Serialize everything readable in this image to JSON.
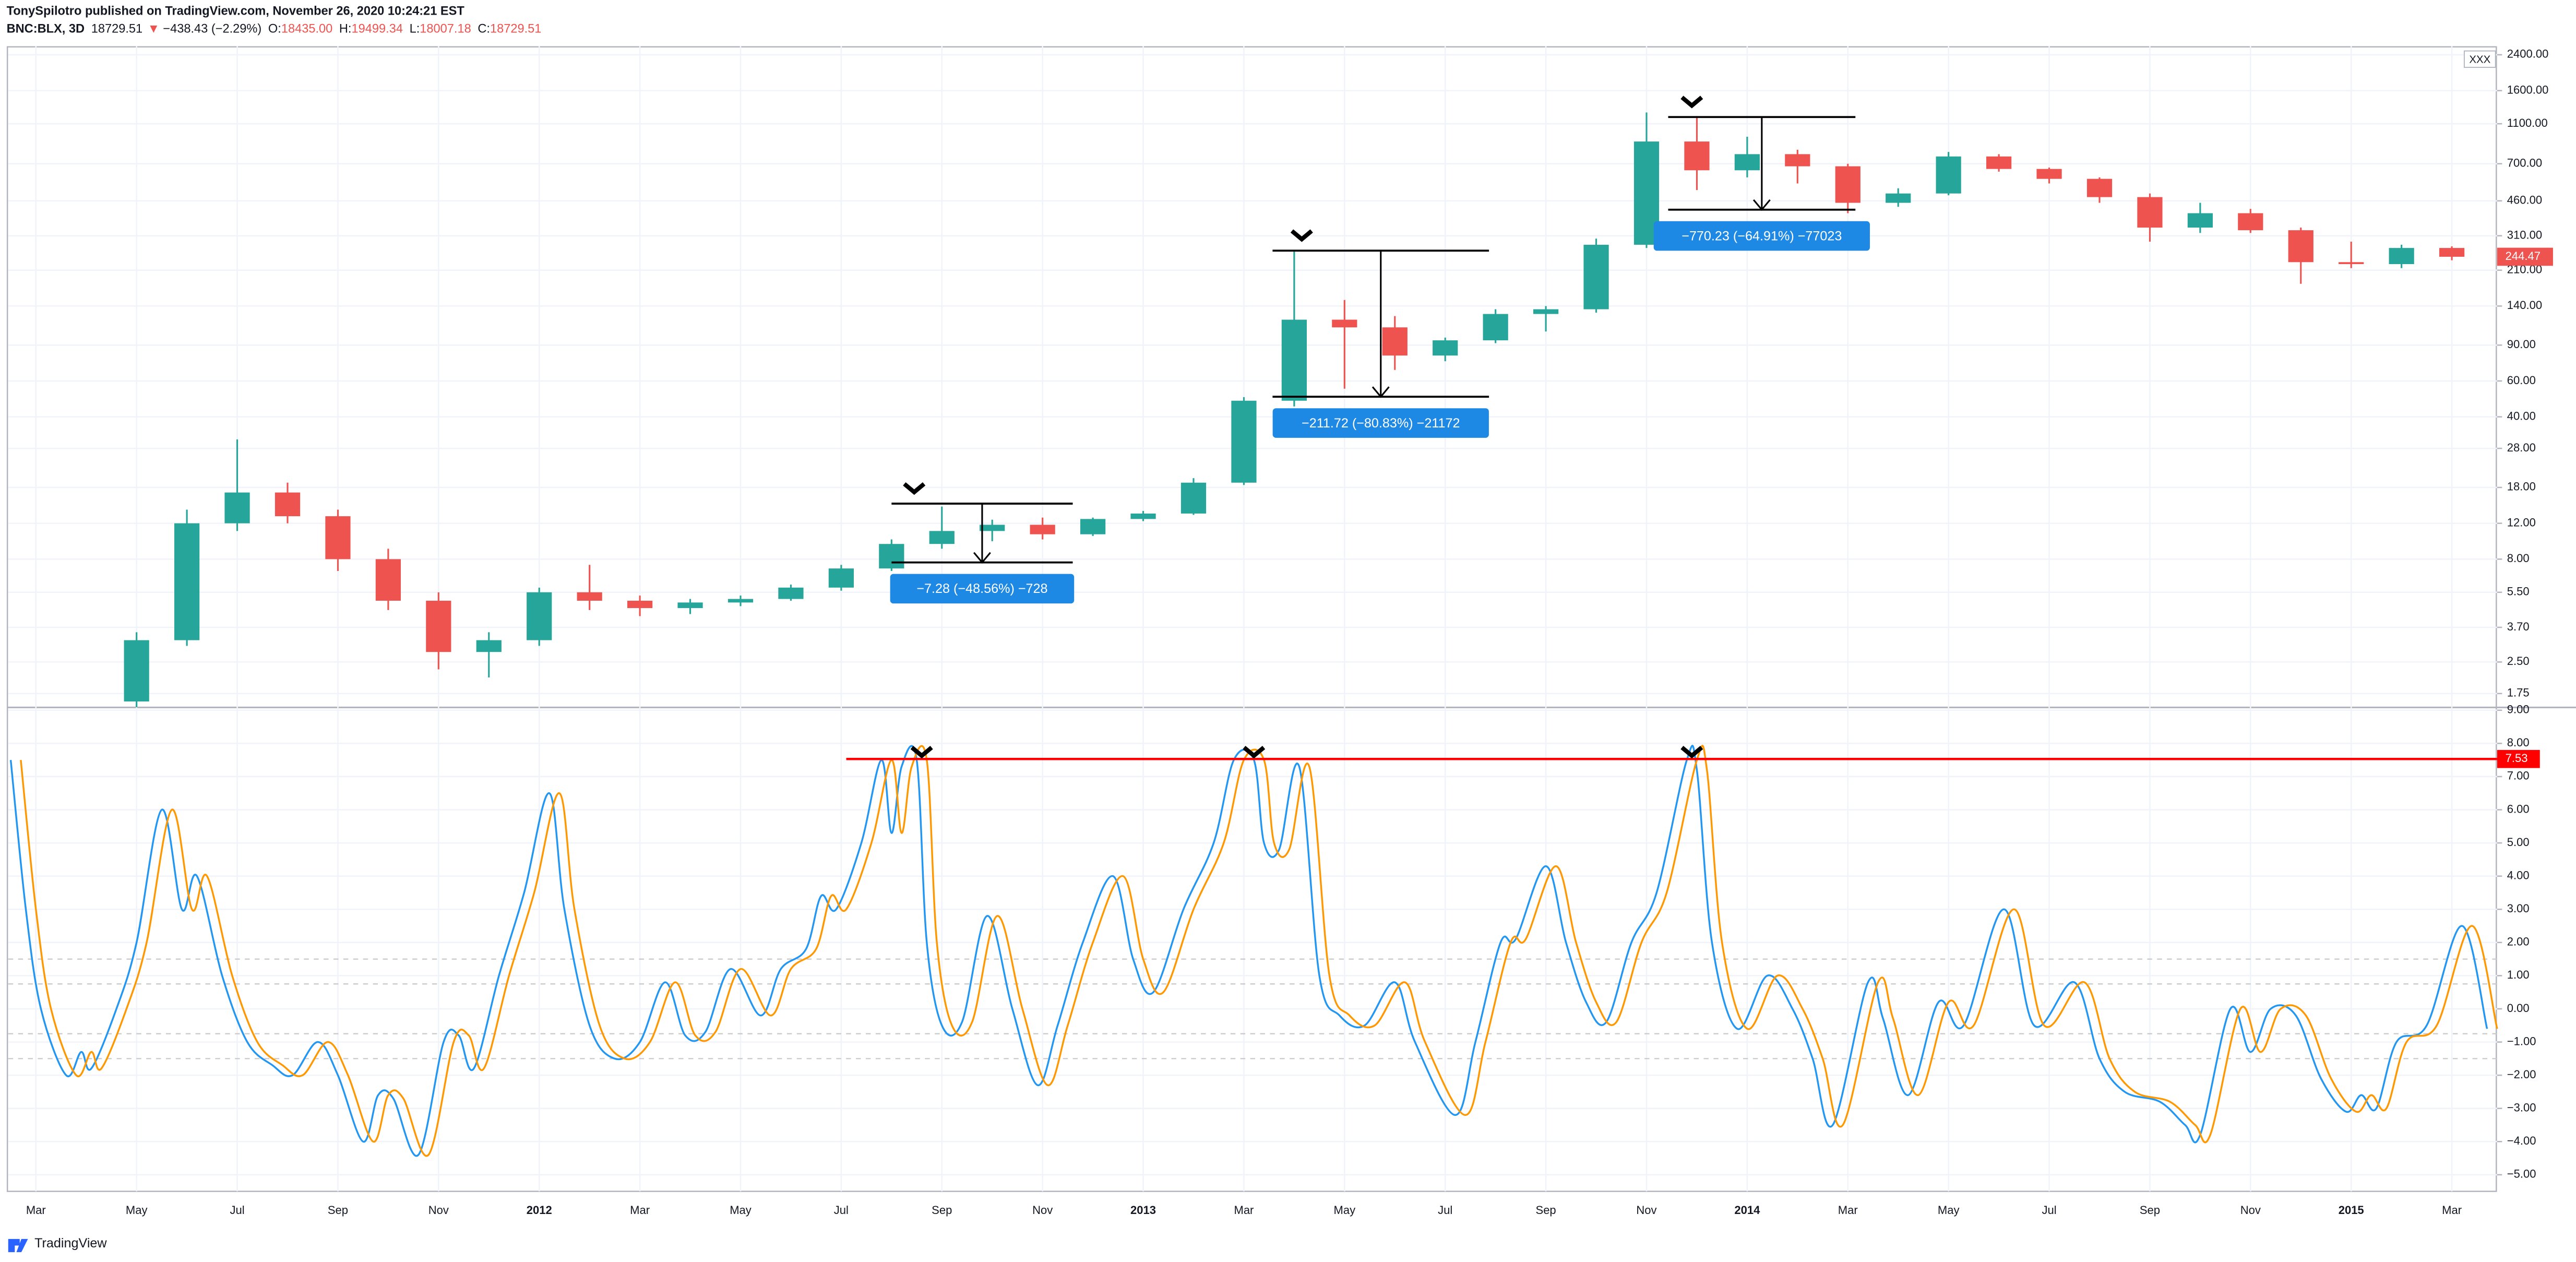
{
  "header": {
    "author_line": "TonySpilotro published on TradingView.com, November 26, 2020 10:24:21 EST",
    "symbol": "BNC:BLX, 3D",
    "last": "18729.51",
    "arrow": "▼",
    "change": "−438.43 (−2.29%)",
    "ohlc": [
      {
        "label": "O:",
        "value": "18435.00"
      },
      {
        "label": "H:",
        "value": "19499.34"
      },
      {
        "label": "L:",
        "value": "18007.18"
      },
      {
        "label": "C:",
        "value": "18729.51"
      }
    ]
  },
  "footer": "TradingView",
  "chart_data": [
    {
      "type": "candlestick",
      "log": true,
      "scale_label": "XXX",
      "up_color": "#26a69a",
      "down_color": "#ef5350",
      "x": [
        4,
        5,
        6,
        7,
        8,
        9,
        10,
        11,
        12,
        13,
        14,
        15,
        16,
        17,
        18,
        19,
        20,
        21,
        22,
        23,
        24,
        25,
        26,
        27,
        28,
        29,
        30,
        31,
        32,
        33,
        34,
        35,
        36,
        37,
        38,
        39,
        40,
        41,
        42,
        43,
        44,
        45,
        46,
        47,
        48,
        49,
        50
      ],
      "open": [
        1.6,
        3.2,
        12,
        17,
        13,
        8,
        5,
        2.8,
        3.2,
        5.5,
        5,
        4.6,
        4.9,
        5.1,
        5.8,
        7.2,
        9.5,
        11,
        11.8,
        10.6,
        12.6,
        13.4,
        19,
        48,
        120,
        110,
        80,
        95,
        128,
        135,
        280,
        900,
        650,
        780,
        680,
        450,
        500,
        760,
        660,
        590,
        480,
        340,
        400,
        330,
        230,
        225,
        270
      ],
      "high": [
        3.5,
        14,
        31,
        19,
        14,
        9,
        5.5,
        3.5,
        5.8,
        7.5,
        5.3,
        5.1,
        5.3,
        6,
        7.5,
        10,
        14.5,
        12.5,
        12.8,
        12.8,
        13.8,
        20,
        50,
        260,
        150,
        125,
        98,
        135,
        140,
        300,
        1250,
        1200,
        950,
        820,
        700,
        530,
        800,
        780,
        670,
        600,
        500,
        450,
        420,
        340,
        290,
        280,
        275
      ],
      "low": [
        1.5,
        3,
        11,
        12,
        7,
        4.5,
        2.3,
        2.1,
        3,
        4.5,
        4.2,
        4.3,
        4.7,
        5,
        5.6,
        7,
        9,
        9.8,
        10,
        10.4,
        12.3,
        13.2,
        18.5,
        45,
        55,
        68,
        75,
        92,
        105,
        130,
        270,
        520,
        600,
        560,
        400,
        430,
        490,
        640,
        560,
        450,
        290,
        320,
        320,
        180,
        215,
        215,
        235
      ],
      "close": [
        3.2,
        12,
        17,
        13,
        8,
        5,
        2.8,
        3.2,
        5.5,
        5,
        4.6,
        4.9,
        5.1,
        5.8,
        7.2,
        9.5,
        11,
        11.8,
        10.6,
        12.6,
        13.4,
        19,
        48,
        120,
        110,
        80,
        95,
        128,
        135,
        280,
        900,
        650,
        780,
        680,
        450,
        500,
        760,
        660,
        590,
        480,
        340,
        400,
        330,
        230,
        225,
        270,
        244.47
      ],
      "ylim": [
        1.51,
        2650
      ],
      "yticks": [
        1.75,
        {
          "value": 2.5,
          "label": "2.50"
        },
        {
          "value": 3.7,
          "label": "3.70"
        },
        {
          "value": 5.5,
          "label": "5.50"
        },
        {
          "value": 8,
          "label": "8.00"
        },
        {
          "value": 12,
          "label": "12.00"
        },
        {
          "value": 18,
          "label": "18.00"
        },
        {
          "value": 28,
          "label": "28.00"
        },
        {
          "value": 40,
          "label": "40.00"
        },
        {
          "value": 60,
          "label": "60.00"
        },
        {
          "value": 90,
          "label": "90.00"
        },
        {
          "value": 140,
          "label": "140.00"
        },
        {
          "value": 210,
          "label": "210.00"
        },
        {
          "value": 310,
          "label": "310.00"
        },
        {
          "value": 460,
          "label": "460.00"
        },
        {
          "value": 700,
          "label": "700.00"
        },
        {
          "value": 1100,
          "label": "1100.00"
        },
        {
          "value": 1600,
          "label": "1600.00"
        },
        {
          "value": 2400,
          "label": "2400.00"
        }
      ],
      "annotations": [
        {
          "label": "−7.28 (−48.56%) −728",
          "from_x": 19.0,
          "to_x": 22.6,
          "top": 14.99,
          "bottom": 7.71,
          "marker_x": 19.45
        },
        {
          "label": "−211.72 (−80.83%) −21172",
          "from_x": 26.57,
          "to_x": 30.87,
          "top": 261.9,
          "bottom": 50.2,
          "marker_x": 27.15
        },
        {
          "label": "−770.23 (−64.91%) −77023",
          "from_x": 34.43,
          "to_x": 38.15,
          "top": 1186.6,
          "bottom": 416.4,
          "marker_x": 34.9
        }
      ]
    },
    {
      "type": "line",
      "xlim": [
        1.45,
        50.9
      ],
      "xticks": [
        {
          "value": 2,
          "label": "Mar"
        },
        {
          "value": 4,
          "label": "May"
        },
        {
          "value": 6,
          "label": "Jul"
        },
        {
          "value": 8,
          "label": "Sep"
        },
        {
          "value": 10,
          "label": "Nov"
        },
        {
          "value": 12,
          "label": "2012"
        },
        {
          "value": 14,
          "label": "Mar"
        },
        {
          "value": 16,
          "label": "May"
        },
        {
          "value": 18,
          "label": "Jul"
        },
        {
          "value": 20,
          "label": "Sep"
        },
        {
          "value": 22,
          "label": "Nov"
        },
        {
          "value": 24,
          "label": "2013"
        },
        {
          "value": 26,
          "label": "Mar"
        },
        {
          "value": 28,
          "label": "May"
        },
        {
          "value": 30,
          "label": "Jul"
        },
        {
          "value": 32,
          "label": "Sep"
        },
        {
          "value": 34,
          "label": "Nov"
        },
        {
          "value": 36,
          "label": "2014"
        },
        {
          "value": 38,
          "label": "Mar"
        },
        {
          "value": 40,
          "label": "May"
        },
        {
          "value": 42,
          "label": "Jul"
        },
        {
          "value": 44,
          "label": "Sep"
        },
        {
          "value": 46,
          "label": "Nov"
        },
        {
          "value": 48,
          "label": "2015"
        },
        {
          "value": 50,
          "label": "Mar"
        }
      ],
      "ylim": [
        -5.5,
        9.06
      ],
      "yticks": [
        {
          "value": -5,
          "label": "−5.00"
        },
        {
          "value": -4,
          "label": "−4.00"
        },
        {
          "value": -3,
          "label": "−3.00"
        },
        {
          "value": -2,
          "label": "−2.00"
        },
        {
          "value": -1,
          "label": "−1.00"
        },
        {
          "value": 0,
          "label": "0.00"
        },
        {
          "value": 1,
          "label": "1.00"
        },
        {
          "value": 2,
          "label": "2.00"
        },
        {
          "value": 3,
          "label": "3.00"
        },
        {
          "value": 4,
          "label": "4.00"
        },
        {
          "value": 5,
          "label": "5.00"
        },
        {
          "value": 6,
          "label": "6.00"
        },
        {
          "value": 7,
          "label": "7.00"
        },
        {
          "value": 8,
          "label": "8.00"
        },
        {
          "value": 9,
          "label": "9.00"
        }
      ],
      "levels": [
        1.5,
        0.75,
        -0.75,
        -1.5
      ],
      "hline": {
        "value": 7.53,
        "from_x": 18.1,
        "color": "#ff0000"
      },
      "markers_x": [
        19.6,
        26.2,
        34.9
      ],
      "series": [
        {
          "color": "#2196f3",
          "x": [
            1.5,
            1.8,
            2.1,
            2.6,
            2.9,
            3.1,
            3.6,
            4,
            4.5,
            4.9,
            5.2,
            5.7,
            6.2,
            6.7,
            7.1,
            7.6,
            8,
            8.5,
            8.8,
            9.1,
            9.6,
            10.1,
            10.4,
            10.7,
            11.2,
            11.7,
            12.2,
            12.5,
            13,
            13.5,
            14,
            14.5,
            14.9,
            15.3,
            15.8,
            16.4,
            16.8,
            17.3,
            17.6,
            17.9,
            18.4,
            18.8,
            19,
            19.2,
            19.5,
            19.7,
            20,
            20.4,
            20.9,
            21.4,
            21.9,
            22.3,
            22.8,
            23.4,
            23.8,
            24.2,
            24.8,
            25.4,
            25.8,
            26.2,
            26.4,
            26.7,
            27.1,
            27.5,
            27.9,
            28.4,
            29,
            29.4,
            30.2,
            30.6,
            31.1,
            31.4,
            32,
            32.4,
            32.8,
            33.2,
            33.7,
            34.2,
            34.8,
            35,
            35.3,
            35.8,
            36.4,
            36.9,
            37.3,
            37.7,
            38.4,
            38.7,
            39.2,
            39.8,
            40.3,
            41.1,
            41.7,
            42.5,
            43,
            43.5,
            44.2,
            44.7,
            45,
            45.6,
            46,
            46.4,
            46.9,
            47.4,
            47.9,
            48.2,
            48.5,
            48.9,
            49.5,
            50.2,
            50.7
          ],
          "values": [
            7.5,
            3,
            0,
            -2,
            -1.3,
            -1.8,
            0,
            2,
            6,
            3,
            4,
            1,
            -1,
            -1.7,
            -2,
            -1,
            -2,
            -4,
            -2.6,
            -2.7,
            -4.4,
            -1,
            -0.8,
            -1.8,
            1,
            3.5,
            6.5,
            3,
            -0.5,
            -1.5,
            -1,
            0.8,
            -0.8,
            -0.7,
            1.2,
            -0.2,
            1.2,
            1.8,
            3.4,
            3,
            5,
            7.5,
            5.3,
            7.3,
            7.5,
            2,
            -0.5,
            -0.4,
            2.8,
            0,
            -2.3,
            -0.5,
            2,
            4,
            1.5,
            0.5,
            3,
            5,
            7.5,
            7.5,
            5,
            4.8,
            7.3,
            1,
            -0.2,
            -0.5,
            0.8,
            -1,
            -3.2,
            -1,
            2,
            2.1,
            4.3,
            2,
            0.2,
            -0.4,
            2,
            3.5,
            7.5,
            7.2,
            2,
            -0.6,
            1,
            0,
            -1.5,
            -3.5,
            0.8,
            -0.3,
            -2.6,
            0.2,
            -0.5,
            3,
            -0.5,
            0.8,
            -1.5,
            -2.5,
            -2.8,
            -3.5,
            -3.8,
            0,
            -1.3,
            0,
            -0.2,
            -2.1,
            -3.1,
            -2.6,
            -3,
            -1,
            -0.5,
            2.5,
            -0.6
          ]
        },
        {
          "color": "#ff9800",
          "x": [
            1.7,
            2,
            2.3,
            2.8,
            3.1,
            3.3,
            3.8,
            4.2,
            4.7,
            5.1,
            5.4,
            5.9,
            6.4,
            6.9,
            7.3,
            7.8,
            8.2,
            8.7,
            9,
            9.3,
            9.8,
            10.3,
            10.6,
            10.9,
            11.4,
            11.9,
            12.4,
            12.7,
            13.2,
            13.7,
            14.2,
            14.7,
            15.1,
            15.5,
            16,
            16.6,
            17,
            17.5,
            17.8,
            18.1,
            18.6,
            19,
            19.2,
            19.4,
            19.7,
            19.9,
            20.2,
            20.6,
            21.1,
            21.6,
            22.1,
            22.5,
            23,
            23.6,
            24,
            24.4,
            25,
            25.6,
            26,
            26.4,
            26.6,
            26.9,
            27.3,
            27.7,
            28.1,
            28.6,
            29.2,
            29.6,
            30.4,
            30.8,
            31.3,
            31.6,
            32.2,
            32.6,
            33,
            33.4,
            33.9,
            34.4,
            35,
            35.2,
            35.5,
            36,
            36.6,
            37.1,
            37.5,
            37.9,
            38.6,
            38.9,
            39.4,
            40,
            40.5,
            41.3,
            41.9,
            42.7,
            43.2,
            43.7,
            44.4,
            44.9,
            45.2,
            45.8,
            46.2,
            46.6,
            47.1,
            47.6,
            48.1,
            48.4,
            48.7,
            49.1,
            49.7,
            50.4,
            50.9
          ],
          "values": [
            7.5,
            3,
            0,
            -2,
            -1.3,
            -1.8,
            0,
            2,
            6,
            3,
            4,
            1,
            -1,
            -1.7,
            -2,
            -1,
            -2,
            -4,
            -2.6,
            -2.7,
            -4.4,
            -1,
            -0.8,
            -1.8,
            1,
            3.5,
            6.5,
            3,
            -0.5,
            -1.5,
            -1,
            0.8,
            -0.8,
            -0.7,
            1.2,
            -0.2,
            1.2,
            1.8,
            3.4,
            3,
            5,
            7.5,
            5.3,
            7.3,
            7.5,
            2,
            -0.5,
            -0.4,
            2.8,
            0,
            -2.3,
            -0.5,
            2,
            4,
            1.5,
            0.5,
            3,
            5,
            7.5,
            7.5,
            5,
            4.8,
            7.3,
            1,
            -0.2,
            -0.5,
            0.8,
            -1,
            -3.2,
            -1,
            2,
            2.1,
            4.3,
            2,
            0.2,
            -0.4,
            2,
            3.5,
            7.5,
            7.2,
            2,
            -0.6,
            1,
            0,
            -1.5,
            -3.5,
            0.8,
            -0.3,
            -2.6,
            0.2,
            -0.5,
            3,
            -0.5,
            0.8,
            -1.5,
            -2.5,
            -2.8,
            -3.5,
            -3.8,
            0,
            -1.3,
            0,
            -0.2,
            -2.1,
            -3.1,
            -2.6,
            -3,
            -1,
            -0.5,
            2.5,
            -0.6
          ]
        }
      ]
    }
  ]
}
